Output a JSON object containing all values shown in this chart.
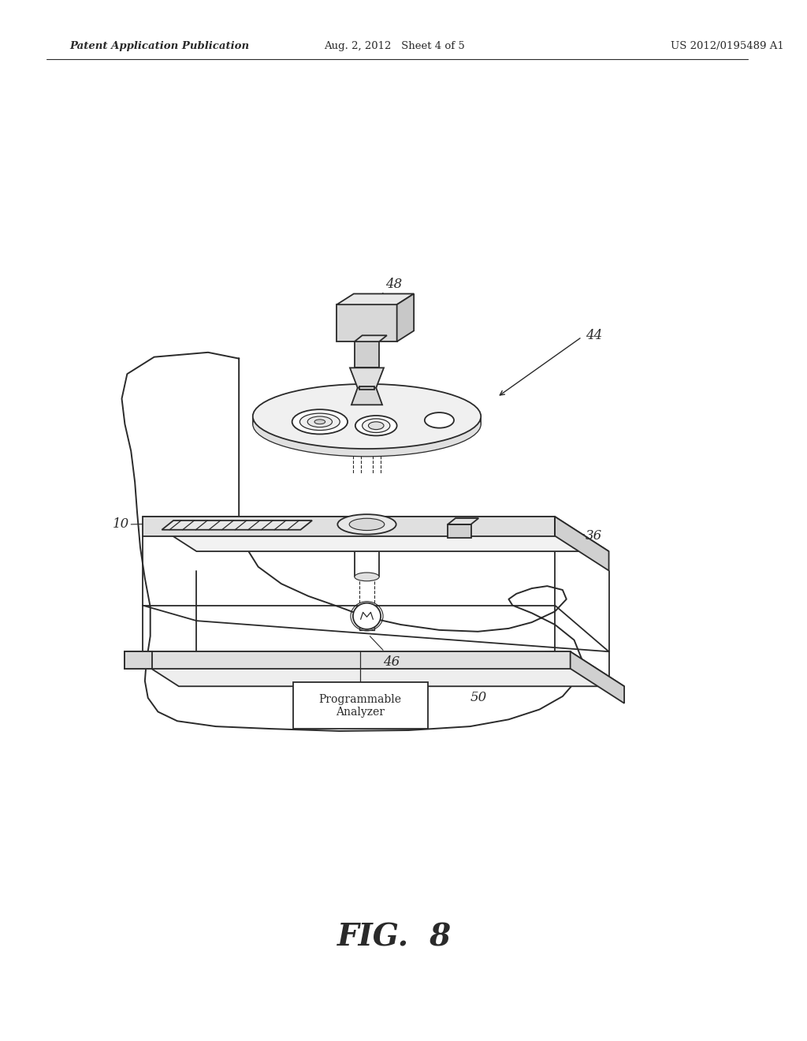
{
  "background_color": "#ffffff",
  "line_color": "#2a2a2a",
  "header_left": "Patent Application Publication",
  "header_center": "Aug. 2, 2012   Sheet 4 of 5",
  "header_right": "US 2012/0195489 A1",
  "figure_label": "FIG.  8"
}
